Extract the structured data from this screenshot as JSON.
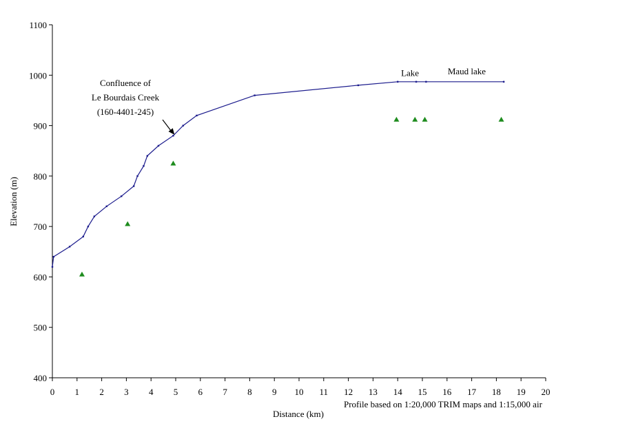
{
  "chart_data": {
    "type": "line",
    "xlabel": "Distance (km)",
    "ylabel": "Elevation (m)",
    "xlim": [
      0,
      20
    ],
    "ylim": [
      400,
      1100
    ],
    "x_ticks": [
      0,
      1,
      2,
      3,
      4,
      5,
      6,
      7,
      8,
      9,
      10,
      11,
      12,
      13,
      14,
      15,
      16,
      17,
      18,
      19,
      20
    ],
    "y_ticks": [
      400,
      500,
      600,
      700,
      800,
      900,
      1000,
      1100
    ],
    "grid": false,
    "legend": "none",
    "colors": {
      "profile": "#1a1a8c",
      "markers": "#1e8c1e",
      "arrow": "#000000"
    },
    "series": [
      {
        "style": "line",
        "points": [
          [
            0,
            620
          ],
          [
            0.05,
            640
          ],
          [
            0.7,
            660
          ],
          [
            1.25,
            680
          ],
          [
            1.45,
            700
          ],
          [
            1.7,
            720
          ],
          [
            2.2,
            740
          ],
          [
            2.8,
            760
          ],
          [
            3.3,
            780
          ],
          [
            3.45,
            800
          ],
          [
            3.7,
            820
          ],
          [
            3.85,
            840
          ],
          [
            4.3,
            860
          ],
          [
            4.9,
            880
          ],
          [
            5.3,
            900
          ],
          [
            5.85,
            920
          ],
          [
            8.2,
            960
          ],
          [
            12.4,
            980
          ],
          [
            14.0,
            987
          ],
          [
            14.75,
            987
          ],
          [
            15.15,
            987
          ],
          [
            18.3,
            987
          ]
        ]
      },
      {
        "style": "markers",
        "marker": "triangle",
        "points": [
          [
            1.2,
            605
          ],
          [
            3.05,
            705
          ],
          [
            4.9,
            825
          ],
          [
            13.95,
            912
          ],
          [
            14.7,
            912
          ],
          [
            15.1,
            912
          ],
          [
            18.2,
            912
          ]
        ]
      }
    ],
    "annotations": [
      {
        "lines": [
          "Confluence of",
          "Le Bourdais Creek",
          "(160-4401-245)"
        ],
        "arrow_to": [
          4.95,
          882
        ]
      },
      {
        "text": "Lake",
        "at": [
          14.5,
          1000
        ]
      },
      {
        "text": "Maud lake",
        "at": [
          16.8,
          1003
        ]
      },
      {
        "text": "Profile based on 1:20,000 TRIM maps and 1:15,000 air",
        "at": [
          15,
          385
        ]
      }
    ]
  }
}
